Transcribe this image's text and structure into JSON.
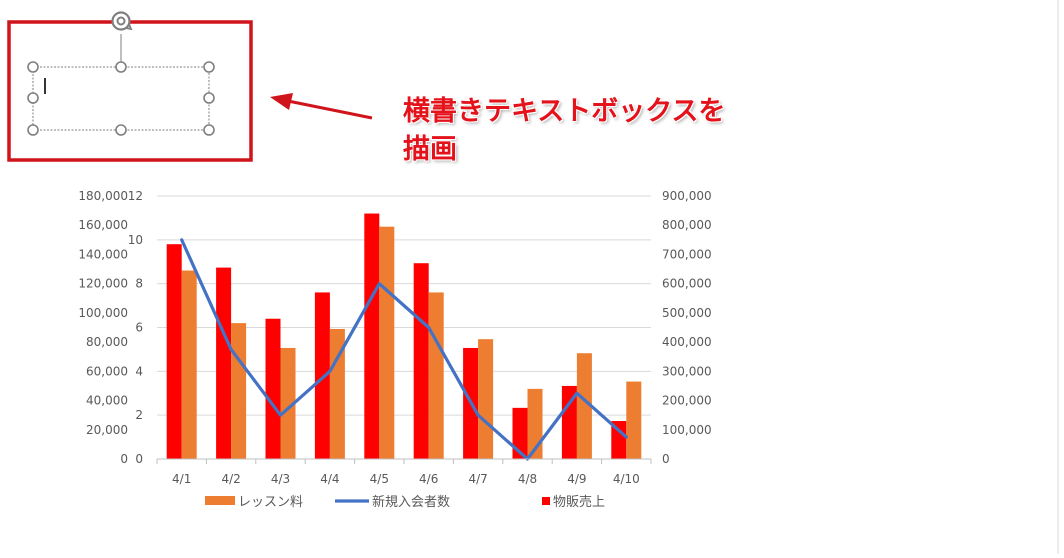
{
  "annotation": {
    "line1": "横書きテキストボックスを",
    "line2": "描画",
    "color": "#e4131b"
  },
  "colors": {
    "lesson_bar": "#ed7d31",
    "goods_bar": "#ff0000",
    "members_line": "#4472c4",
    "highlight_box": "#d0141b"
  },
  "chart_data": {
    "type": "bar",
    "categories": [
      "4/1",
      "4/2",
      "4/3",
      "4/4",
      "4/5",
      "4/6",
      "4/7",
      "4/8",
      "4/9",
      "4/10"
    ],
    "series": [
      {
        "name": "物販売上",
        "type": "bar",
        "axis": "left",
        "values": [
          147000,
          131000,
          96000,
          114000,
          168000,
          134000,
          76000,
          35000,
          50000,
          26000
        ]
      },
      {
        "name": "レッスン料",
        "type": "bar",
        "axis": "right",
        "values": [
          645000,
          465000,
          380000,
          445000,
          795000,
          570000,
          410000,
          240000,
          362000,
          265000
        ]
      },
      {
        "name": "新規入会者数",
        "type": "line",
        "axis": "left_inner",
        "values": [
          10,
          5,
          2,
          4,
          8,
          6,
          2,
          0,
          3,
          1
        ]
      }
    ],
    "axes": {
      "left": {
        "min": 0,
        "max": 180000,
        "ticks": [
          "0",
          "20,000",
          "40,000",
          "60,000",
          "80,000",
          "100,000",
          "120,000",
          "140,000",
          "160,000",
          "180,000"
        ]
      },
      "left_inner": {
        "min": 0,
        "max": 12,
        "ticks": [
          "0",
          "2",
          "4",
          "6",
          "8",
          "10",
          "12"
        ]
      },
      "right": {
        "min": 0,
        "max": 900000,
        "ticks": [
          "0",
          "100,000",
          "200,000",
          "300,000",
          "400,000",
          "500,000",
          "600,000",
          "700,000",
          "800,000",
          "900,000"
        ]
      }
    },
    "grid": true,
    "legend_position": "bottom",
    "legend": [
      {
        "label": "レッスン料",
        "kind": "bar",
        "color": "#ed7d31"
      },
      {
        "label": "新規入会者数",
        "kind": "line",
        "color": "#4472c4"
      },
      {
        "label": "物販売上",
        "kind": "square",
        "color": "#ff0000"
      }
    ]
  }
}
